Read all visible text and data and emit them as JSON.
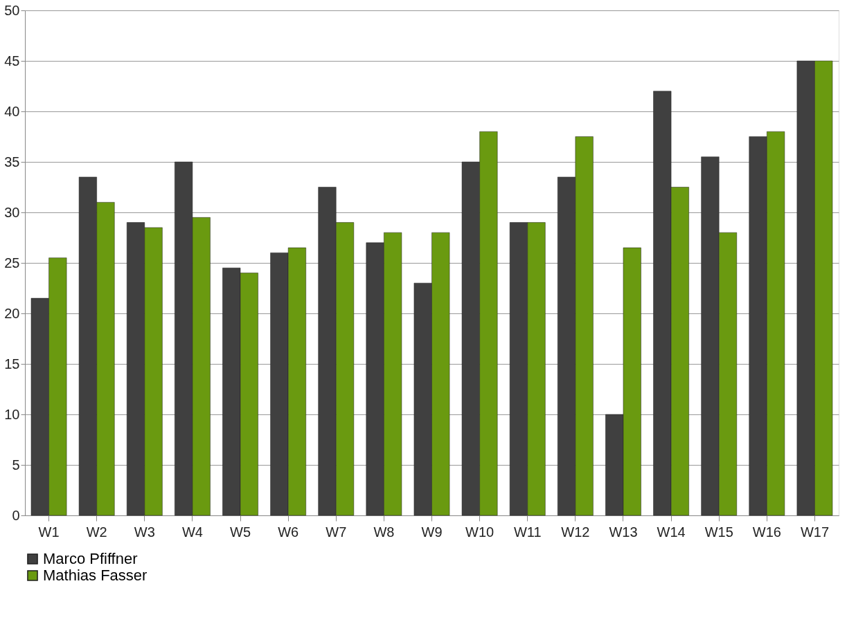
{
  "chart_data": {
    "type": "bar",
    "categories": [
      "W1",
      "W2",
      "W3",
      "W4",
      "W5",
      "W6",
      "W7",
      "W8",
      "W9",
      "W10",
      "W11",
      "W12",
      "W13",
      "W14",
      "W15",
      "W16",
      "W17"
    ],
    "series": [
      {
        "name": "Marco Pfiffner",
        "color": "#404040",
        "values": [
          21.5,
          33.5,
          29,
          35,
          24.5,
          26,
          32.5,
          27,
          23,
          35,
          29,
          33.5,
          10,
          42,
          35.5,
          37.5,
          45
        ]
      },
      {
        "name": "Mathias Fasser",
        "color": "#6a9a10",
        "values": [
          25.5,
          31,
          28.5,
          29.5,
          24,
          26.5,
          29,
          28,
          28,
          38,
          29,
          37.5,
          26.5,
          32.5,
          28,
          38,
          45
        ]
      }
    ],
    "ylim": [
      0,
      50
    ],
    "yticks": [
      0,
      5,
      10,
      15,
      20,
      25,
      30,
      35,
      40,
      45,
      50
    ],
    "grid": "y",
    "legend": "bottom"
  }
}
